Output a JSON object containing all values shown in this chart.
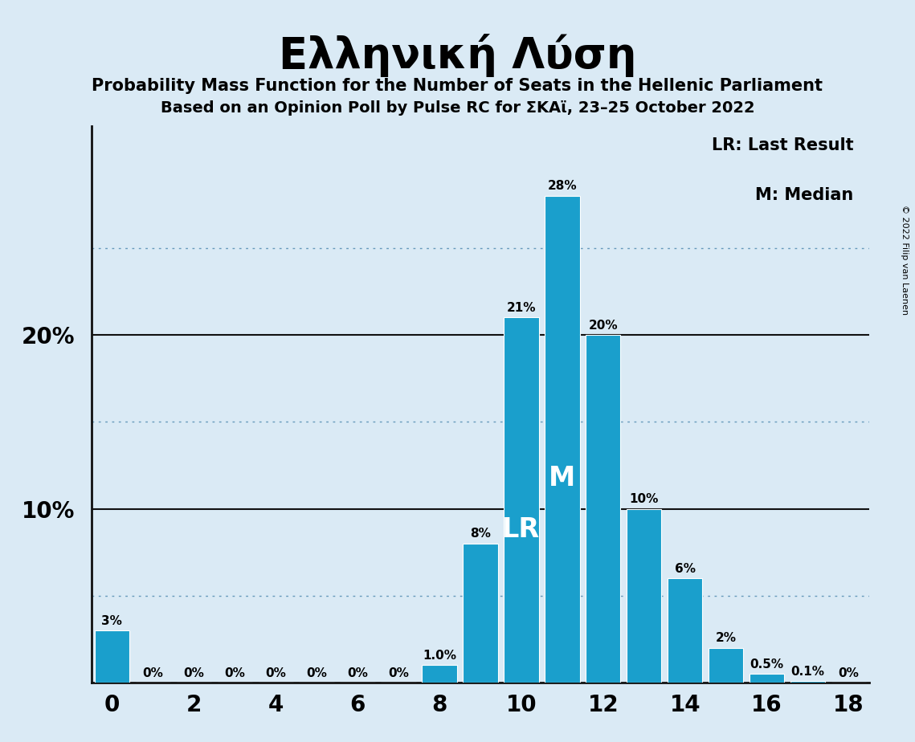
{
  "seats": [
    0,
    1,
    2,
    3,
    4,
    5,
    6,
    7,
    8,
    9,
    10,
    11,
    12,
    13,
    14,
    15,
    16,
    17,
    18
  ],
  "probabilities": [
    3.0,
    0.0,
    0.0,
    0.0,
    0.0,
    0.0,
    0.0,
    0.0,
    1.0,
    8.0,
    21.0,
    28.0,
    20.0,
    10.0,
    6.0,
    2.0,
    0.5,
    0.1,
    0.0
  ],
  "bar_labels": [
    "3%",
    "0%",
    "0%",
    "0%",
    "0%",
    "0%",
    "0%",
    "0%",
    "1.0%",
    "8%",
    "21%",
    "28%",
    "20%",
    "10%",
    "6%",
    "2%",
    "0.5%",
    "0.1%",
    "0%"
  ],
  "bar_color": "#1a9fcc",
  "background_color": "#daeaf5",
  "title": "Ελληνική Λύση",
  "subtitle1": "Probability Mass Function for the Number of Seats in the Hellenic Parliament",
  "subtitle2": "Based on an Opinion Poll by Pulse RC for ΣΚΑϊ, 23–25 October 2022",
  "yticks_solid": [
    10,
    20
  ],
  "yticks_dotted": [
    5,
    15,
    25
  ],
  "ytick_labels": [
    10,
    20
  ],
  "LR_seat": 10,
  "M_seat": 11,
  "legend_text1": "LR: Last Result",
  "legend_text2": "M: Median",
  "copyright": "© 2022 Filip van Laenen",
  "xlim": [
    -0.5,
    18.5
  ],
  "ylim": [
    0,
    32
  ],
  "bar_width": 0.85,
  "label_fontsize": 11,
  "tick_fontsize": 20,
  "ytick_fontsize": 20,
  "title_fontsize": 38,
  "subtitle_fontsize": 15,
  "legend_fontsize": 15,
  "lr_m_fontsize": 24
}
